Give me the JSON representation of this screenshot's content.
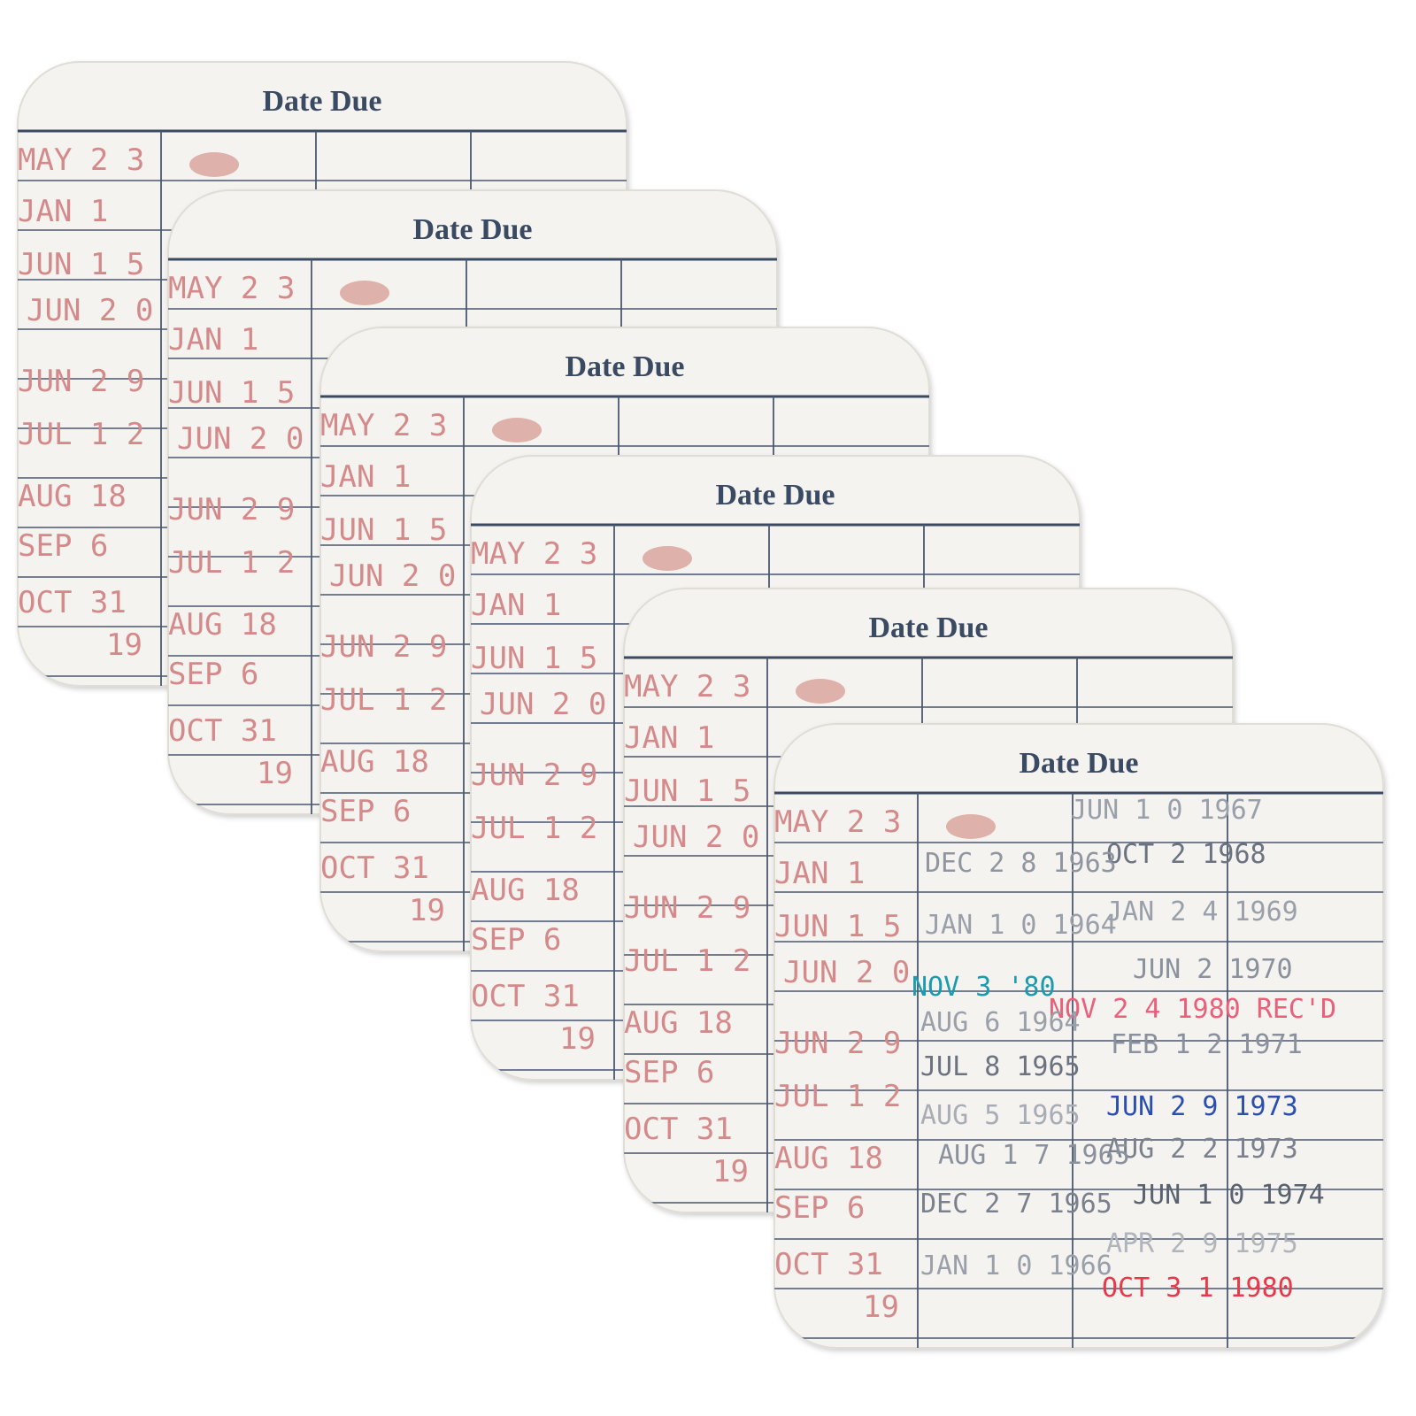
{
  "cards": [
    {
      "title": "Date Due"
    },
    {
      "title": "Date Due"
    },
    {
      "title": "Date Due"
    },
    {
      "title": "Date Due"
    },
    {
      "title": "Date Due"
    },
    {
      "title": "Date Due"
    }
  ],
  "left_column_stamps": [
    "MAY 2 3",
    "JAN 1",
    "JUN 1 5",
    "JUN 2 0",
    "JUN 2 9",
    "JUL 1 2",
    "AUG 18",
    "SEP 6",
    "OCT 31",
    "19"
  ],
  "left_column_color": "#d48a8a",
  "front_stamps": [
    {
      "text": "JUN 1 0 1967",
      "color": "#9aa0aa"
    },
    {
      "text": "OCT 2 1968",
      "color": "#6b7280"
    },
    {
      "text": "DEC 2 8 1963",
      "color": "#8f96a0"
    },
    {
      "text": "JAN 2 4 1969",
      "color": "#9aa0aa"
    },
    {
      "text": "JAN 1 0 1964",
      "color": "#9aa0aa"
    },
    {
      "text": "JUN 2 1970",
      "color": "#8a919c"
    },
    {
      "text": "NOV 3 '80",
      "color": "#1a9bb0"
    },
    {
      "text": "NOV 2 4 1980 REC'D",
      "color": "#e8607a"
    },
    {
      "text": "AUG 6 1964",
      "color": "#9aa0aa"
    },
    {
      "text": "FEB 1 2 1971",
      "color": "#8a919c"
    },
    {
      "text": "JUL 8 1965",
      "color": "#6b7280"
    },
    {
      "text": "JUN 2 9 1973",
      "color": "#2a4fb0"
    },
    {
      "text": "AUG 5 1965",
      "color": "#a8adb5"
    },
    {
      "text": "AUG 2 2 1973",
      "color": "#7a818c"
    },
    {
      "text": "AUG 1 7 1965",
      "color": "#8a919c"
    },
    {
      "text": "JUN 1 0 1974",
      "color": "#5a6270"
    },
    {
      "text": "DEC 2 7 1965",
      "color": "#7a818c"
    },
    {
      "text": "APR 2 9 1975",
      "color": "#b0b5bc"
    },
    {
      "text": "JAN 1 0 1966",
      "color": "#9aa0aa"
    },
    {
      "text": "OCT 3 1 1980",
      "color": "#e8384a"
    }
  ]
}
